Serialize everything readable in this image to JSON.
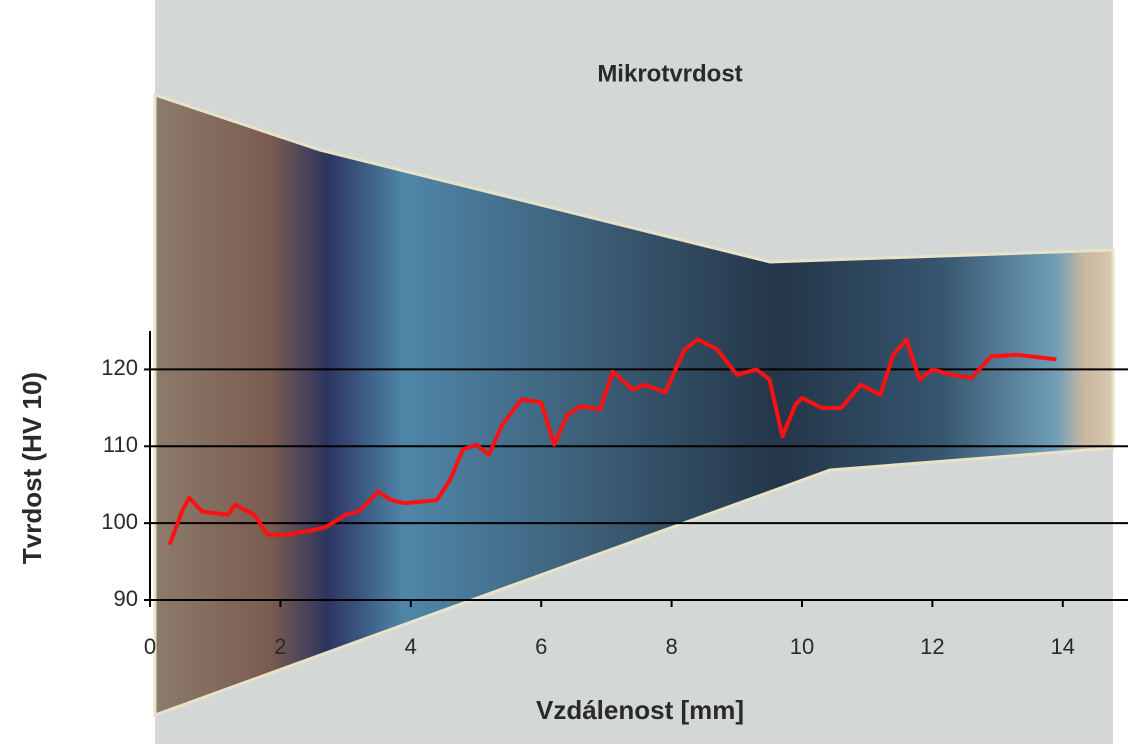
{
  "chart_data": {
    "type": "line",
    "title": "Mikrotvrdost",
    "x_label": "Vzdálenost [mm]",
    "y_label": "Tvrdost (HV 10)",
    "x": [
      0.3,
      0.5,
      0.6,
      0.8,
      1.2,
      1.3,
      1.6,
      1.8,
      2.1,
      2.5,
      2.7,
      3.0,
      3.2,
      3.5,
      3.7,
      3.9,
      4.4,
      4.6,
      4.8,
      5.0,
      5.2,
      5.4,
      5.7,
      6.0,
      6.2,
      6.4,
      6.6,
      6.9,
      7.1,
      7.4,
      7.6,
      7.9,
      8.2,
      8.4,
      8.7,
      9.0,
      9.3,
      9.5,
      9.7,
      9.9,
      10.0,
      10.3,
      10.6,
      10.9,
      11.2,
      11.4,
      11.6,
      11.8,
      12.0,
      12.3,
      12.6,
      12.9,
      13.3,
      13.6,
      13.9
    ],
    "values": [
      97.2,
      101.7,
      103.3,
      101.5,
      101.1,
      102.4,
      101.1,
      98.5,
      98.5,
      99.1,
      99.5,
      101.1,
      101.5,
      104.1,
      103.0,
      102.6,
      103.0,
      105.6,
      109.6,
      110.2,
      108.9,
      112.8,
      116.1,
      115.7,
      110.2,
      114.1,
      115.2,
      114.8,
      119.7,
      117.4,
      118.0,
      117.0,
      122.6,
      123.9,
      122.6,
      119.3,
      120.0,
      118.7,
      111.3,
      115.4,
      116.3,
      115.0,
      115.0,
      118.0,
      116.7,
      121.9,
      123.9,
      118.7,
      120.0,
      119.3,
      118.9,
      121.7,
      121.9,
      121.6,
      121.3
    ],
    "color": "#ff1010",
    "xlim": [
      0,
      15
    ],
    "xticks": [
      0,
      2,
      4,
      6,
      8,
      10,
      12,
      14
    ],
    "ylim": [
      90,
      125
    ],
    "yticks": [
      90,
      100,
      110,
      120
    ],
    "grid": true
  }
}
